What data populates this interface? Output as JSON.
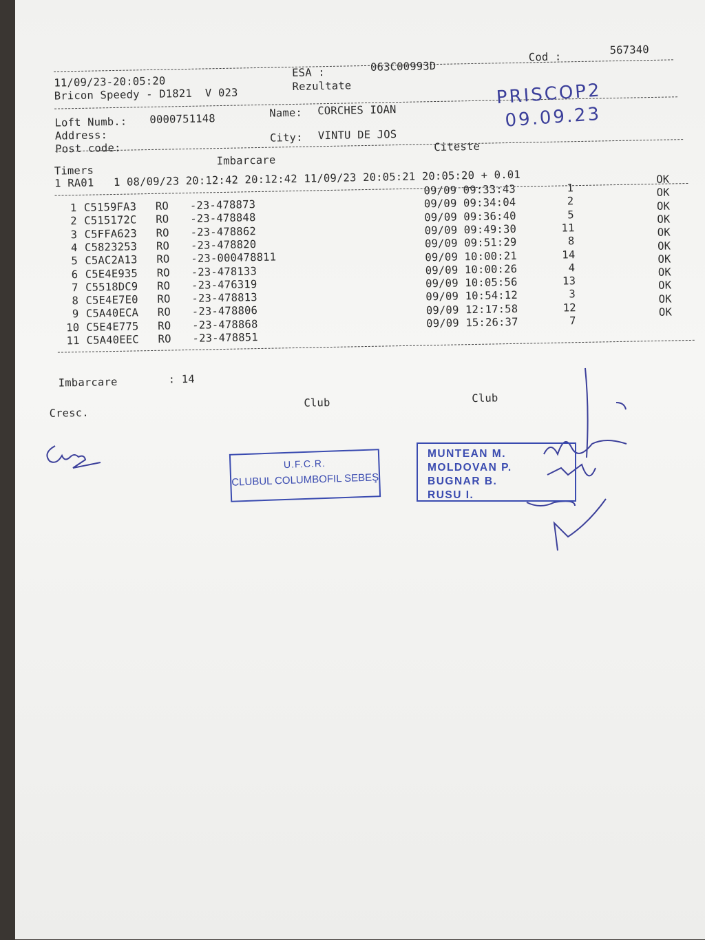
{
  "header": {
    "datetime": "11/09/23-20:05:20",
    "esa_label": "ESA :",
    "esa_value": "063C00993D",
    "cod_label": "Cod :",
    "cod_value": "567340",
    "device": "Bricon Speedy - D1821  V 023",
    "report": "Rezultate"
  },
  "owner": {
    "loft_label": "Loft Numb.:",
    "loft_value": "0000751148",
    "name_label": "Name:",
    "name_value": "CORCHES IOAN",
    "address_label": "Address:",
    "postcode_label": "Post code:",
    "city_label": "City:",
    "city_value": "VINTU DE JOS"
  },
  "handwritten": {
    "place": "PRISCOP2",
    "date": "09.09.23"
  },
  "timers": {
    "timers_label": "Timers",
    "imbarcare_label": "Imbarcare",
    "citeste_label": "Citeste",
    "line": "1 RA01   1 08/09/23 20:12:42 20:12:42 11/09/23 20:05:21 20:05:20 + 0.01"
  },
  "rows": [
    {
      "n": "1",
      "chip": "C5159FA3",
      "country": "RO",
      "ring": "-23-478873",
      "time": "09/09 09:33:43",
      "pos": "1",
      "status": "OK"
    },
    {
      "n": "2",
      "chip": "C515172C",
      "country": "RO",
      "ring": "-23-478848",
      "time": "09/09 09:34:04",
      "pos": "2",
      "status": "OK"
    },
    {
      "n": "3",
      "chip": "C5FFA623",
      "country": "RO",
      "ring": "-23-478862",
      "time": "09/09 09:36:40",
      "pos": "5",
      "status": "OK"
    },
    {
      "n": "4",
      "chip": "C5823253",
      "country": "RO",
      "ring": "-23-478820",
      "time": "09/09 09:49:30",
      "pos": "11",
      "status": "OK"
    },
    {
      "n": "5",
      "chip": "C5AC2A13",
      "country": "RO",
      "ring": "-23-000478811",
      "time": "09/09 09:51:29",
      "pos": "8",
      "status": "OK"
    },
    {
      "n": "6",
      "chip": "C5E4E935",
      "country": "RO",
      "ring": "-23-478133",
      "time": "09/09 10:00:21",
      "pos": "14",
      "status": "OK"
    },
    {
      "n": "7",
      "chip": "C5518DC9",
      "country": "RO",
      "ring": "-23-476319",
      "time": "09/09 10:00:26",
      "pos": "4",
      "status": "OK"
    },
    {
      "n": "8",
      "chip": "C5E4E7E0",
      "country": "RO",
      "ring": "-23-478813",
      "time": "09/09 10:05:56",
      "pos": "13",
      "status": "OK"
    },
    {
      "n": "9",
      "chip": "C5A40ECA",
      "country": "RO",
      "ring": "-23-478806",
      "time": "09/09 10:54:12",
      "pos": "3",
      "status": "OK"
    },
    {
      "n": "10",
      "chip": "C5E4E775",
      "country": "RO",
      "ring": "-23-478868",
      "time": "09/09 12:17:58",
      "pos": "12",
      "status": "OK"
    },
    {
      "n": "11",
      "chip": "C5A40EEC",
      "country": "RO",
      "ring": "-23-478851",
      "time": "09/09 15:26:37",
      "pos": "7",
      "status": "OK"
    }
  ],
  "footer": {
    "imbarcare_label": "Imbarcare",
    "imbarcare_value": ": 14",
    "cresc_label": "Cresc.",
    "club1_label": "Club",
    "club2_label": "Club"
  },
  "stamps": {
    "club_stamp": {
      "line1": "U.F.C.R.",
      "line2": "CLUBUL COLUMBOFIL SEBEŞ"
    },
    "names_stamp": [
      "MUNTEAN M.",
      "MOLDOVAN P.",
      "BUGNAR B.",
      "RUSU I."
    ]
  },
  "colors": {
    "ink": "#3a4bb0",
    "print": "#2a2a2a"
  }
}
